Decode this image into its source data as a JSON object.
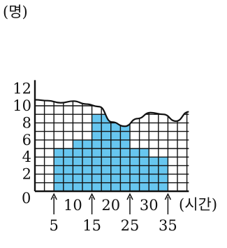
{
  "chart_data": {
    "type": "histogram",
    "ylabel": "(명)",
    "xlabel": "(시간)",
    "origin_label": "0",
    "bin_width": 5,
    "bins": [
      {
        "from": 5,
        "to": 10,
        "value": 5
      },
      {
        "from": 10,
        "to": 15,
        "value": 6
      },
      {
        "from": 15,
        "to": 20,
        "value": 9
      },
      {
        "from": 20,
        "to": 25,
        "value": 8
      },
      {
        "from": 25,
        "to": 30,
        "value": 5
      },
      {
        "from": 30,
        "to": 35,
        "value": 4
      }
    ],
    "x_ticks_upper": [
      "10",
      "20",
      "30"
    ],
    "x_ticks_lower": [
      "5",
      "15",
      "25",
      "35"
    ],
    "y_ticks": [
      2,
      4,
      6,
      8,
      10,
      12
    ],
    "xlim": [
      0,
      40
    ],
    "ylim": [
      0,
      13
    ],
    "grid": true,
    "break_line": true,
    "colors": {
      "bar_fill": "#67c6ef",
      "grid": "#111111",
      "axis": "#111111",
      "text": "#111111"
    }
  }
}
